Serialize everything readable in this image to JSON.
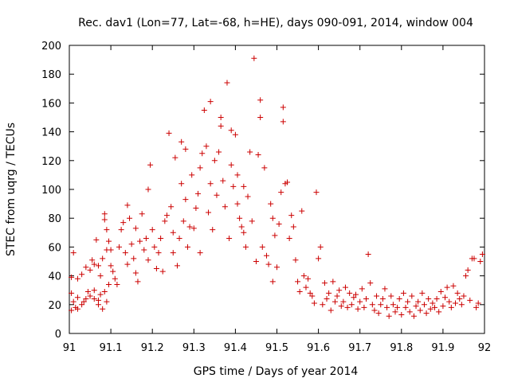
{
  "chart_data": {
    "type": "scatter",
    "title": "Rec. dav1 (Lon=77, Lat=-68, h=HE), days 090-091, 2014, window 004",
    "xlabel": "GPS time / Days of year 2014",
    "ylabel": "STEC from uqrg / TECUs",
    "xlim": [
      91,
      92
    ],
    "ylim": [
      0,
      200
    ],
    "xticks": [
      91,
      91.1,
      91.2,
      91.3,
      91.4,
      91.5,
      91.6,
      91.7,
      91.8,
      91.9,
      92
    ],
    "xtick_labels": [
      "91",
      "91.1",
      "91.2",
      "91.3",
      "91.4",
      "91.5",
      "91.6",
      "91.7",
      "91.8",
      "91.9",
      "92"
    ],
    "yticks": [
      0,
      20,
      40,
      60,
      80,
      100,
      120,
      140,
      160,
      180,
      200
    ],
    "ytick_labels": [
      "0",
      "20",
      "40",
      "60",
      "80",
      "100",
      "120",
      "140",
      "160",
      "180",
      "200"
    ],
    "grid": false,
    "marker": "+",
    "color": "#cc0000",
    "points": [
      [
        91.005,
        39
      ],
      [
        91.01,
        56
      ],
      [
        91.02,
        38
      ],
      [
        91.03,
        41
      ],
      [
        91.005,
        28
      ],
      [
        91.01,
        22
      ],
      [
        91.015,
        18
      ],
      [
        91.02,
        25
      ],
      [
        91.03,
        20
      ],
      [
        91.04,
        24
      ],
      [
        91.05,
        26
      ],
      [
        91.06,
        24
      ],
      [
        91.07,
        23
      ],
      [
        91.075,
        27
      ],
      [
        91.005,
        16
      ],
      [
        91.02,
        17
      ],
      [
        91.035,
        22
      ],
      [
        91.045,
        29
      ],
      [
        91.06,
        30
      ],
      [
        91.07,
        20
      ],
      [
        91.08,
        17
      ],
      [
        91.09,
        22
      ],
      [
        91.085,
        29
      ],
      [
        91.095,
        34
      ],
      [
        91.04,
        46
      ],
      [
        91.05,
        44
      ],
      [
        91.055,
        51
      ],
      [
        91.06,
        48
      ],
      [
        91.065,
        65
      ],
      [
        91.07,
        47
      ],
      [
        91.075,
        40
      ],
      [
        91.08,
        52
      ],
      [
        91.085,
        83
      ],
      [
        91.085,
        79
      ],
      [
        91.09,
        58
      ],
      [
        91.09,
        72
      ],
      [
        91.095,
        64
      ],
      [
        91.1,
        58
      ],
      [
        91.1,
        47
      ],
      [
        91.105,
        43
      ],
      [
        91.11,
        38
      ],
      [
        91.115,
        34
      ],
      [
        91.12,
        60
      ],
      [
        91.125,
        72
      ],
      [
        91.13,
        77
      ],
      [
        91.135,
        56
      ],
      [
        91.14,
        48
      ],
      [
        91.14,
        89
      ],
      [
        91.145,
        80
      ],
      [
        91.15,
        62
      ],
      [
        91.155,
        52
      ],
      [
        91.16,
        73
      ],
      [
        91.16,
        42
      ],
      [
        91.165,
        36
      ],
      [
        91.17,
        64
      ],
      [
        91.175,
        83
      ],
      [
        91.18,
        58
      ],
      [
        91.185,
        66
      ],
      [
        91.19,
        51
      ],
      [
        91.19,
        100
      ],
      [
        91.195,
        117
      ],
      [
        91.2,
        72
      ],
      [
        91.205,
        60
      ],
      [
        91.21,
        45
      ],
      [
        91.215,
        56
      ],
      [
        91.22,
        66
      ],
      [
        91.225,
        43
      ],
      [
        91.23,
        78
      ],
      [
        91.235,
        82
      ],
      [
        91.24,
        139
      ],
      [
        91.245,
        88
      ],
      [
        91.25,
        70
      ],
      [
        91.25,
        56
      ],
      [
        91.255,
        122
      ],
      [
        91.26,
        47
      ],
      [
        91.265,
        66
      ],
      [
        91.27,
        104
      ],
      [
        91.27,
        133
      ],
      [
        91.275,
        78
      ],
      [
        91.28,
        93
      ],
      [
        91.28,
        128
      ],
      [
        91.285,
        60
      ],
      [
        91.29,
        74
      ],
      [
        91.295,
        110
      ],
      [
        91.3,
        73
      ],
      [
        91.305,
        87
      ],
      [
        91.31,
        97
      ],
      [
        91.315,
        56
      ],
      [
        91.315,
        115
      ],
      [
        91.32,
        125
      ],
      [
        91.325,
        155
      ],
      [
        91.33,
        130
      ],
      [
        91.335,
        84
      ],
      [
        91.34,
        104
      ],
      [
        91.34,
        161
      ],
      [
        91.345,
        72
      ],
      [
        91.35,
        120
      ],
      [
        91.355,
        96
      ],
      [
        91.36,
        126
      ],
      [
        91.365,
        144
      ],
      [
        91.365,
        150
      ],
      [
        91.37,
        106
      ],
      [
        91.375,
        88
      ],
      [
        91.38,
        174
      ],
      [
        91.385,
        66
      ],
      [
        91.39,
        117
      ],
      [
        91.39,
        141
      ],
      [
        91.395,
        102
      ],
      [
        91.4,
        138
      ],
      [
        91.405,
        90
      ],
      [
        91.405,
        110
      ],
      [
        91.41,
        80
      ],
      [
        91.415,
        74
      ],
      [
        91.42,
        70
      ],
      [
        91.42,
        102
      ],
      [
        91.425,
        60
      ],
      [
        91.43,
        95
      ],
      [
        91.435,
        126
      ],
      [
        91.44,
        78
      ],
      [
        91.445,
        191
      ],
      [
        91.45,
        50
      ],
      [
        91.455,
        124
      ],
      [
        91.46,
        150
      ],
      [
        91.46,
        162
      ],
      [
        91.465,
        60
      ],
      [
        91.47,
        115
      ],
      [
        91.475,
        54
      ],
      [
        91.48,
        48
      ],
      [
        91.485,
        90
      ],
      [
        91.49,
        80
      ],
      [
        91.49,
        36
      ],
      [
        91.495,
        68
      ],
      [
        91.5,
        46
      ],
      [
        91.505,
        76
      ],
      [
        91.51,
        98
      ],
      [
        91.515,
        157
      ],
      [
        91.515,
        147
      ],
      [
        91.52,
        104
      ],
      [
        91.525,
        105
      ],
      [
        91.53,
        66
      ],
      [
        91.535,
        82
      ],
      [
        91.54,
        74
      ],
      [
        91.545,
        51
      ],
      [
        91.55,
        36
      ],
      [
        91.555,
        29
      ],
      [
        91.56,
        85
      ],
      [
        91.565,
        40
      ],
      [
        91.57,
        32
      ],
      [
        91.575,
        38
      ],
      [
        91.58,
        28
      ],
      [
        91.585,
        26
      ],
      [
        91.59,
        21
      ],
      [
        91.595,
        98
      ],
      [
        91.6,
        52
      ],
      [
        91.605,
        60
      ],
      [
        91.61,
        20
      ],
      [
        91.615,
        35
      ],
      [
        91.62,
        24
      ],
      [
        91.625,
        28
      ],
      [
        91.63,
        16
      ],
      [
        91.635,
        36
      ],
      [
        91.64,
        22
      ],
      [
        91.645,
        26
      ],
      [
        91.65,
        30
      ],
      [
        91.655,
        19
      ],
      [
        91.66,
        22
      ],
      [
        91.665,
        32
      ],
      [
        91.67,
        18
      ],
      [
        91.675,
        28
      ],
      [
        91.68,
        20
      ],
      [
        91.685,
        25
      ],
      [
        91.69,
        27
      ],
      [
        91.695,
        17
      ],
      [
        91.7,
        22
      ],
      [
        91.705,
        31
      ],
      [
        91.71,
        18
      ],
      [
        91.715,
        24
      ],
      [
        91.72,
        55
      ],
      [
        91.725,
        35
      ],
      [
        91.73,
        20
      ],
      [
        91.735,
        16
      ],
      [
        91.74,
        26
      ],
      [
        91.745,
        14
      ],
      [
        91.75,
        20
      ],
      [
        91.755,
        24
      ],
      [
        91.76,
        31
      ],
      [
        91.765,
        18
      ],
      [
        91.77,
        12
      ],
      [
        91.775,
        26
      ],
      [
        91.78,
        20
      ],
      [
        91.785,
        15
      ],
      [
        91.79,
        18
      ],
      [
        91.795,
        24
      ],
      [
        91.8,
        13
      ],
      [
        91.805,
        28
      ],
      [
        91.81,
        18
      ],
      [
        91.815,
        22
      ],
      [
        91.82,
        15
      ],
      [
        91.825,
        26
      ],
      [
        91.83,
        12
      ],
      [
        91.835,
        19
      ],
      [
        91.84,
        22
      ],
      [
        91.845,
        16
      ],
      [
        91.85,
        28
      ],
      [
        91.855,
        20
      ],
      [
        91.86,
        14
      ],
      [
        91.865,
        24
      ],
      [
        91.87,
        17
      ],
      [
        91.875,
        21
      ],
      [
        91.88,
        18
      ],
      [
        91.885,
        24
      ],
      [
        91.89,
        15
      ],
      [
        91.895,
        29
      ],
      [
        91.9,
        19
      ],
      [
        91.905,
        25
      ],
      [
        91.91,
        32
      ],
      [
        91.915,
        22
      ],
      [
        91.92,
        18
      ],
      [
        91.925,
        33
      ],
      [
        91.93,
        21
      ],
      [
        91.935,
        28
      ],
      [
        91.94,
        24
      ],
      [
        91.945,
        20
      ],
      [
        91.95,
        26
      ],
      [
        91.955,
        40
      ],
      [
        91.96,
        44
      ],
      [
        91.965,
        23
      ],
      [
        91.97,
        52
      ],
      [
        91.975,
        52
      ],
      [
        91.98,
        18
      ],
      [
        91.985,
        21
      ],
      [
        91.99,
        50
      ],
      [
        91.995,
        55
      ]
    ]
  }
}
